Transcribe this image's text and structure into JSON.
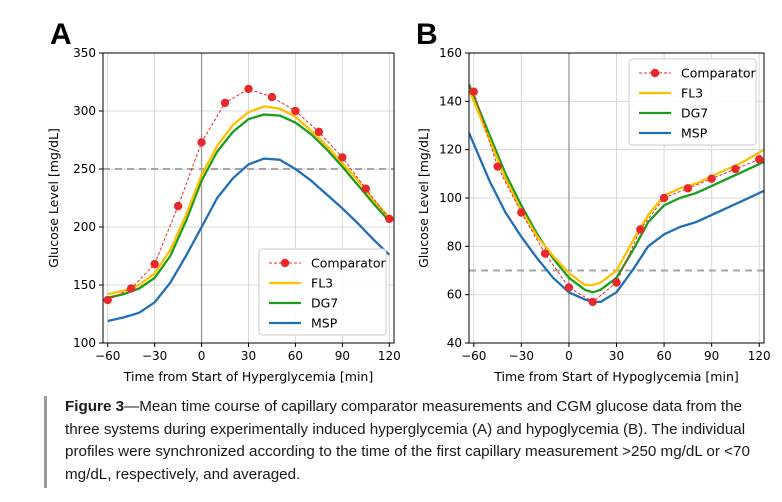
{
  "colors": {
    "Comparator": "#e8282b",
    "FL3": "#ffc000",
    "DG7": "#1b9e1b",
    "MSP": "#1f6fb8",
    "threshold": "#a6a6a6",
    "grid": "#d9d9d9"
  },
  "chart_data": [
    {
      "type": "line",
      "panel_letter": "A",
      "xlabel": "Time from Start of Hyperglycemia [min]",
      "ylabel": "Glucose Level [mg/dL]",
      "xlim": [
        -63,
        123
      ],
      "ylim": [
        100,
        350
      ],
      "xticks": [
        -60,
        -30,
        0,
        30,
        60,
        90,
        120
      ],
      "xticklabels": [
        "−60",
        "−30",
        "0",
        "30",
        "60",
        "90",
        "120"
      ],
      "yticks": [
        100,
        150,
        200,
        250,
        300,
        350
      ],
      "yticklabels": [
        "100",
        "150",
        "200",
        "250",
        "300",
        "350"
      ],
      "grid": true,
      "vline_x": 0,
      "threshold_y": 250,
      "legend": [
        "Comparator",
        "FL3",
        "DG7",
        "MSP"
      ],
      "legend_position": "lower-right",
      "series": [
        {
          "name": "Comparator",
          "x": [
            -60,
            -45,
            -30,
            -15,
            0,
            15,
            30,
            45,
            60,
            75,
            90,
            105,
            120
          ],
          "y": [
            137,
            147,
            168,
            218,
            273,
            307,
            319,
            312,
            300,
            282,
            260,
            233,
            207
          ]
        },
        {
          "name": "FL3",
          "x": [
            -60,
            -50,
            -40,
            -30,
            -20,
            -10,
            0,
            10,
            20,
            30,
            40,
            50,
            60,
            70,
            80,
            90,
            100,
            110,
            120
          ],
          "y": [
            142,
            145,
            150,
            160,
            180,
            210,
            245,
            270,
            288,
            299,
            304,
            302,
            295,
            283,
            270,
            255,
            240,
            223,
            208
          ]
        },
        {
          "name": "DG7",
          "x": [
            -60,
            -50,
            -40,
            -30,
            -20,
            -10,
            0,
            10,
            20,
            30,
            40,
            50,
            60,
            70,
            80,
            90,
            100,
            110,
            120
          ],
          "y": [
            139,
            142,
            147,
            156,
            175,
            205,
            240,
            265,
            282,
            293,
            297,
            296,
            290,
            280,
            267,
            252,
            236,
            220,
            205
          ]
        },
        {
          "name": "MSP",
          "x": [
            -60,
            -50,
            -40,
            -30,
            -20,
            -10,
            0,
            10,
            20,
            30,
            40,
            50,
            60,
            70,
            80,
            90,
            100,
            110,
            120
          ],
          "y": [
            119,
            122,
            126,
            135,
            152,
            175,
            200,
            225,
            242,
            254,
            259,
            258,
            250,
            240,
            228,
            216,
            203,
            189,
            176
          ]
        }
      ]
    },
    {
      "type": "line",
      "panel_letter": "B",
      "xlabel": "Time from Start of Hypoglycemia [min]",
      "ylabel": "Glucose Level [mg/dL]",
      "xlim": [
        -63,
        123
      ],
      "ylim": [
        40,
        160
      ],
      "xticks": [
        -60,
        -30,
        0,
        30,
        60,
        90,
        120
      ],
      "xticklabels": [
        "−60",
        "−30",
        "0",
        "30",
        "60",
        "90",
        "120"
      ],
      "yticks": [
        40,
        60,
        80,
        100,
        120,
        140,
        160
      ],
      "yticklabels": [
        "40",
        "60",
        "80",
        "100",
        "120",
        "140",
        "160"
      ],
      "grid": true,
      "vline_x": 0,
      "threshold_y": 70,
      "legend": [
        "Comparator",
        "FL3",
        "DG7",
        "MSP"
      ],
      "legend_position": "top-right",
      "series": [
        {
          "name": "Comparator",
          "x": [
            -60,
            -45,
            -30,
            -15,
            0,
            15,
            30,
            45,
            60,
            75,
            90,
            105,
            120
          ],
          "y": [
            144,
            113,
            94,
            77,
            63,
            57,
            65,
            87,
            100,
            104,
            108,
            112,
            116
          ]
        },
        {
          "name": "FL3",
          "x": [
            -63,
            -50,
            -40,
            -30,
            -20,
            -10,
            0,
            10,
            15,
            20,
            30,
            40,
            50,
            60,
            70,
            80,
            90,
            100,
            110,
            123
          ],
          "y": [
            145,
            124,
            108,
            95,
            84,
            76,
            69,
            64,
            64,
            65,
            70,
            82,
            93,
            101,
            104,
            106,
            109,
            112,
            115,
            120
          ]
        },
        {
          "name": "DG7",
          "x": [
            -63,
            -50,
            -40,
            -30,
            -20,
            -10,
            0,
            10,
            15,
            20,
            30,
            40,
            50,
            60,
            70,
            80,
            90,
            100,
            110,
            123
          ],
          "y": [
            147,
            126,
            110,
            97,
            85,
            75,
            67,
            62,
            61,
            62,
            67,
            78,
            90,
            97,
            100,
            102,
            105,
            108,
            111,
            115
          ]
        },
        {
          "name": "MSP",
          "x": [
            -63,
            -50,
            -40,
            -30,
            -20,
            -10,
            0,
            10,
            15,
            20,
            30,
            40,
            50,
            60,
            70,
            80,
            90,
            100,
            110,
            123
          ],
          "y": [
            127,
            107,
            94,
            84,
            75,
            67,
            61,
            58,
            57,
            57,
            61,
            70,
            80,
            85,
            88,
            90,
            93,
            96,
            99,
            103
          ]
        }
      ]
    }
  ],
  "caption": {
    "label": "Figure 3",
    "text": "—Mean time course of capillary comparator measurements and CGM glucose data from the three systems during experimentally induced hyperglycemia (A) and hypoglycemia (B). The individual profiles were synchronized according to the time of the first capillary measurement >250 mg/dL or <70 mg/dL, respectively, and averaged."
  }
}
